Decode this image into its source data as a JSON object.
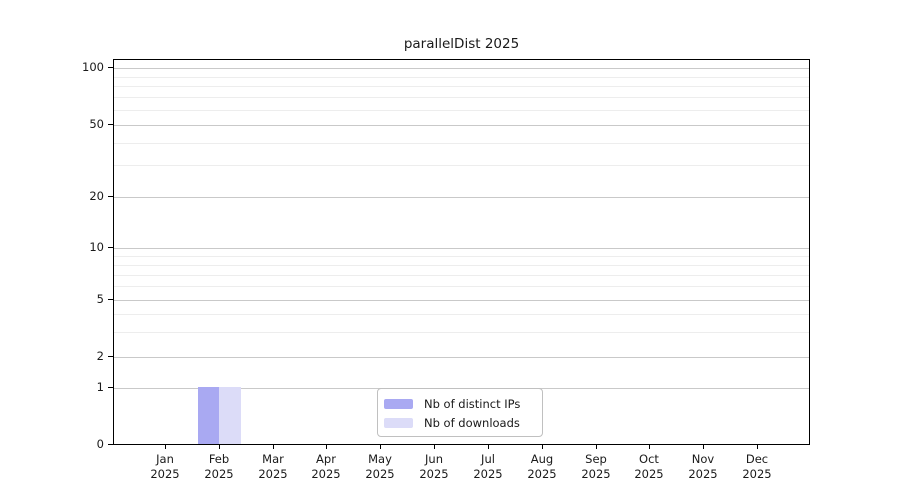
{
  "chart_data": {
    "type": "bar",
    "title": "parallelDist 2025",
    "categories": [
      {
        "month": "Jan",
        "year": "2025"
      },
      {
        "month": "Feb",
        "year": "2025"
      },
      {
        "month": "Mar",
        "year": "2025"
      },
      {
        "month": "Apr",
        "year": "2025"
      },
      {
        "month": "May",
        "year": "2025"
      },
      {
        "month": "Jun",
        "year": "2025"
      },
      {
        "month": "Jul",
        "year": "2025"
      },
      {
        "month": "Aug",
        "year": "2025"
      },
      {
        "month": "Sep",
        "year": "2025"
      },
      {
        "month": "Oct",
        "year": "2025"
      },
      {
        "month": "Nov",
        "year": "2025"
      },
      {
        "month": "Dec",
        "year": "2025"
      }
    ],
    "series": [
      {
        "name": "Nb of distinct IPs",
        "color": "#a9a9f2",
        "values": [
          0,
          1,
          0,
          0,
          0,
          0,
          0,
          0,
          0,
          0,
          0,
          0
        ]
      },
      {
        "name": "Nb of downloads",
        "color": "#dcdcf8",
        "values": [
          0,
          1,
          0,
          0,
          0,
          0,
          0,
          0,
          0,
          0,
          0,
          0
        ]
      }
    ],
    "y_axis": {
      "scale": "log-like",
      "major_ticks": [
        0,
        1,
        2,
        5,
        10,
        20,
        50,
        100
      ],
      "minor_gridlines": [
        3,
        4,
        6,
        7,
        8,
        9,
        30,
        40,
        60,
        70,
        80,
        90
      ],
      "grid": "on"
    },
    "legend": {
      "position": "inside-bottom-center",
      "entries": [
        "Nb of distinct IPs",
        "Nb of downloads"
      ]
    },
    "colors": {
      "distinct_ips": "#a9a9f2",
      "downloads": "#dcdcf8",
      "grid_major": "#c9c9c9",
      "grid_minor": "#ededed",
      "axis": "#000000"
    }
  }
}
